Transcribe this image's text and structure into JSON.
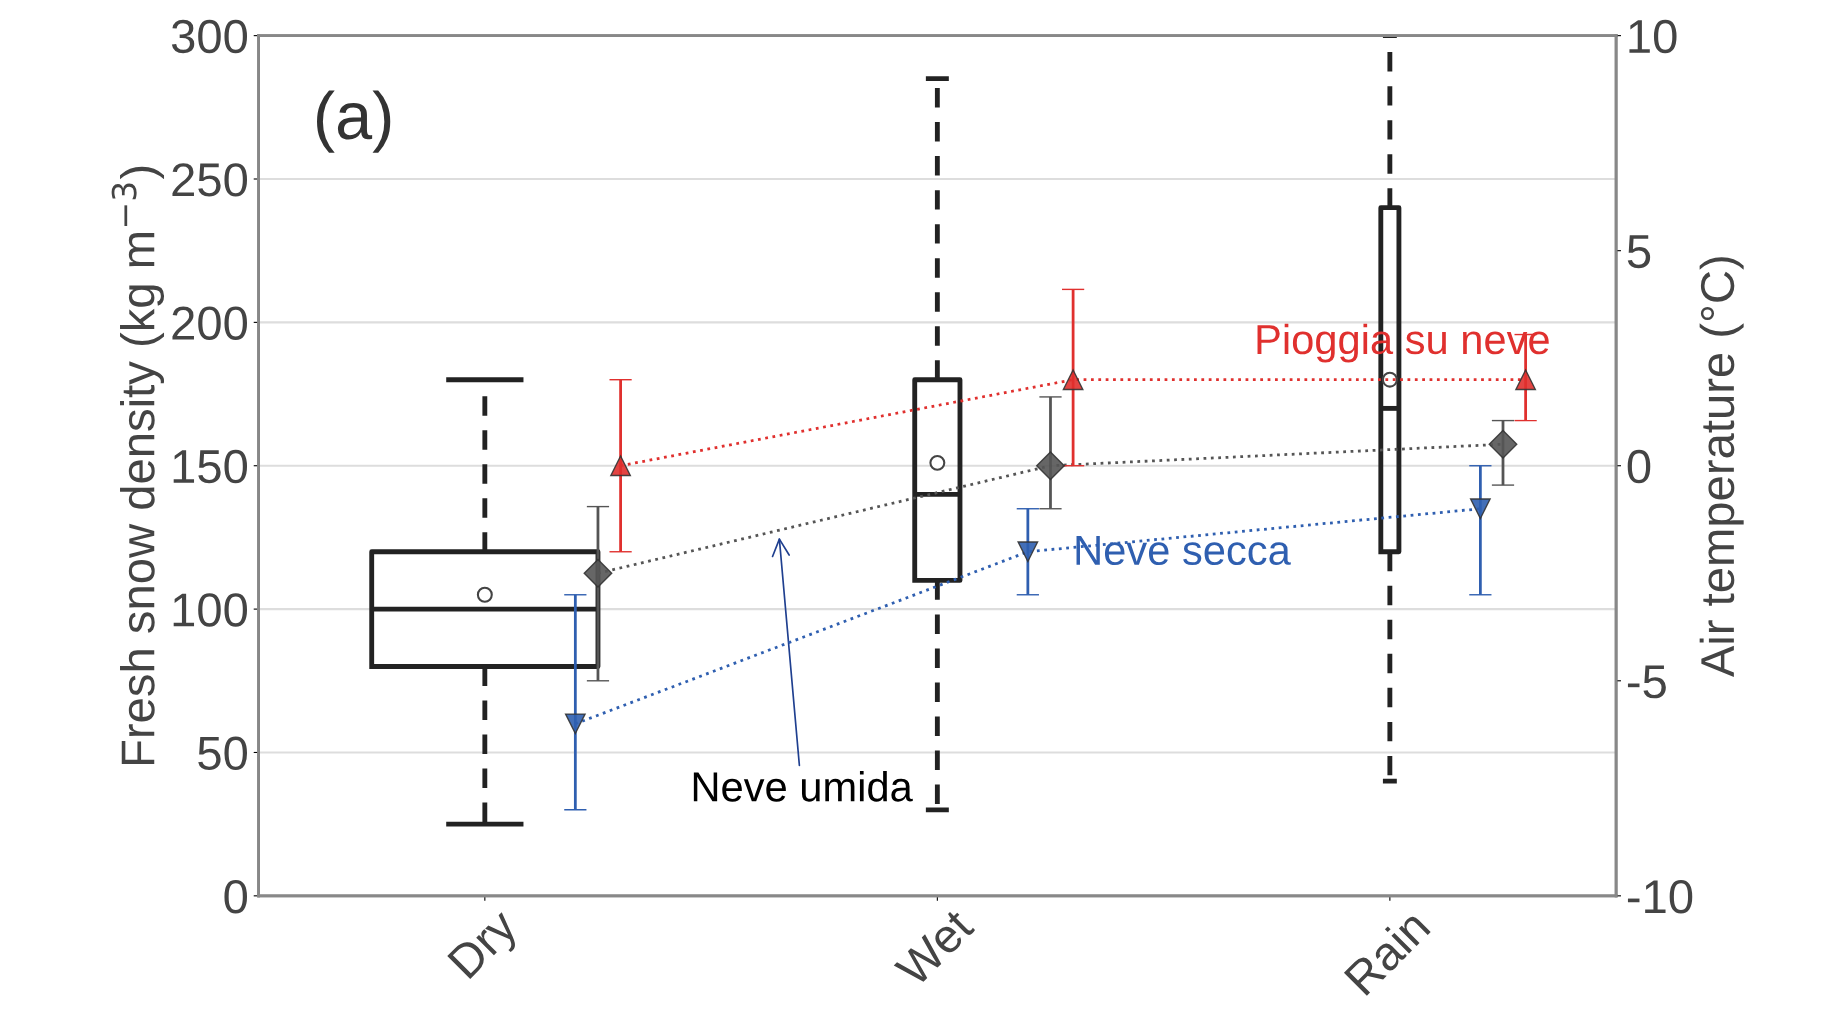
{
  "chart_data": {
    "type": "box",
    "categories": [
      "Dry",
      "Wet",
      "Rain"
    ],
    "boxes": [
      {
        "low": 25,
        "q1": 80,
        "median": 100,
        "q3": 120,
        "high": 180,
        "mean": 105
      },
      {
        "low": 30,
        "q1": 110,
        "median": 140,
        "q3": 180,
        "high": 285,
        "mean": 151
      },
      {
        "low": 40,
        "q1": 120,
        "median": 170,
        "q3": 240,
        "high": 300,
        "mean": 180
      }
    ],
    "ylabel": "Fresh snow density (kg m$^{−3}$)",
    "y2label": "Air temperature (°C)",
    "ylim": [
      0,
      300
    ],
    "yticks": [
      0,
      50,
      100,
      150,
      200,
      250,
      300
    ],
    "y2lim": [
      -10,
      10
    ],
    "y2ticks": [
      -10,
      -5,
      0,
      5,
      10
    ],
    "grid": "y",
    "line_style": "dotted",
    "series": [
      {
        "name": "Pioggia su neve",
        "type": "line",
        "axis": "y2",
        "marker": "triangle",
        "color": "#e0302e",
        "values": [
          0,
          2,
          2
        ],
        "errors": [
          [
            -2,
            2
          ],
          [
            0,
            4.1
          ],
          [
            1.05,
            3.05
          ]
        ]
      },
      {
        "name": "Neve umida",
        "type": "line",
        "axis": "y2",
        "marker": "diamond",
        "color": "#555555",
        "values": [
          -2.5,
          0,
          0.5
        ],
        "errors": [
          [
            -5,
            -0.95
          ],
          [
            -1,
            1.6
          ],
          [
            -0.45,
            1.05
          ]
        ]
      },
      {
        "name": "Neve secca",
        "type": "line",
        "axis": "y2",
        "marker": "triangle_down",
        "color": "#2f5fb0",
        "values": [
          -6,
          -2,
          -1
        ],
        "errors": [
          [
            -8,
            -3
          ],
          [
            -3,
            -1
          ],
          [
            -3,
            0
          ]
        ]
      }
    ],
    "annotations": [
      "(a)"
    ]
  }
}
